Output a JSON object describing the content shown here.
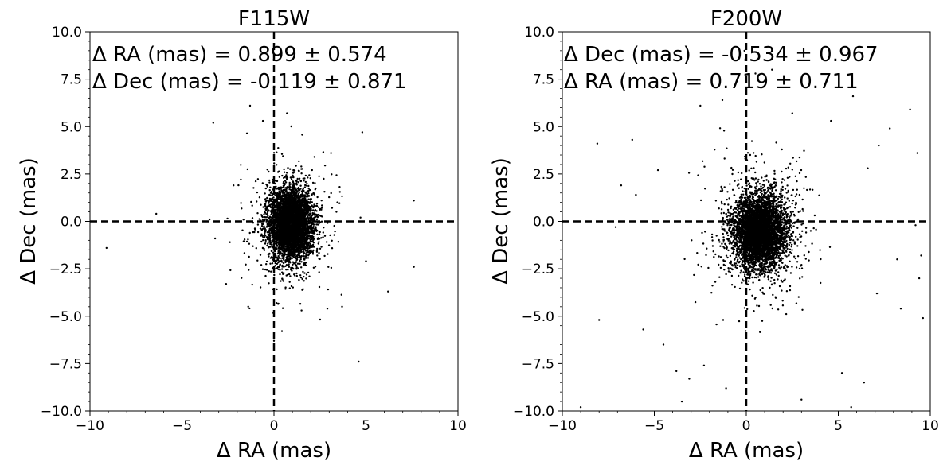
{
  "chart_data": [
    {
      "type": "scatter",
      "title": "F115W",
      "xlabel": "Δ RA (mas)",
      "ylabel": "Δ Dec (mas)",
      "xlim": [
        -10,
        10
      ],
      "ylim": [
        -10,
        10
      ],
      "xticks": [
        "−10",
        "−5",
        "0",
        "5",
        "10"
      ],
      "yticks": [
        "10.0",
        "7.5",
        "5.0",
        "2.5",
        "0.0",
        "−2.5",
        "−5.0",
        "−7.5",
        "−10.0"
      ],
      "annotations": [
        "Δ RA (mas) = 0.899 ± 0.574",
        "Δ Dec (mas) = -0.119 ± 0.871"
      ],
      "reference_lines": {
        "x": 0,
        "y": 0
      },
      "cluster": {
        "x_mean": 0.899,
        "x_std": 0.574,
        "y_mean": -0.119,
        "y_std": 0.871,
        "n": 5000
      },
      "outliers": [
        [
          -9.1,
          -1.4
        ],
        [
          -6.4,
          0.4
        ],
        [
          -3.3,
          5.2
        ],
        [
          -1.3,
          6.1
        ],
        [
          -0.6,
          5.3
        ],
        [
          4.8,
          4.7
        ],
        [
          7.6,
          1.1
        ],
        [
          7.6,
          -2.4
        ],
        [
          6.2,
          -3.7
        ],
        [
          4.6,
          -7.4
        ],
        [
          0.0,
          -6.3
        ],
        [
          -2.6,
          -3.3
        ],
        [
          -1.4,
          -4.5
        ],
        [
          -3.5,
          0.1
        ],
        [
          -2.2,
          1.9
        ],
        [
          -1.8,
          2.2
        ],
        [
          3.1,
          3.6
        ],
        [
          2.9,
          -4.6
        ],
        [
          3.7,
          -4.5
        ],
        [
          5.0,
          -2.1
        ],
        [
          4.7,
          0.2
        ],
        [
          -3.2,
          -0.9
        ],
        [
          -2.4,
          -1.1
        ],
        [
          2.2,
          3.4
        ],
        [
          1.5,
          -4.7
        ]
      ]
    },
    {
      "type": "scatter",
      "title": "F200W",
      "xlabel": "Δ RA (mas)",
      "ylabel": "Δ Dec (mas)",
      "xlim": [
        -10,
        10
      ],
      "ylim": [
        -10,
        10
      ],
      "xticks": [
        "−10",
        "−5",
        "0",
        "5",
        "10"
      ],
      "yticks": [
        "10.0",
        "7.5",
        "5.0",
        "2.5",
        "0.0",
        "−2.5",
        "−5.0",
        "−7.5",
        "−10.0"
      ],
      "annotations": [
        "Δ Dec (mas) = -0.534 ± 0.967",
        "Δ RA (mas) = 0.719 ± 0.711"
      ],
      "reference_lines": {
        "x": 0,
        "y": 0
      },
      "cluster": {
        "x_mean": 0.719,
        "x_std": 0.711,
        "y_mean": -0.534,
        "y_std": 0.967,
        "n": 5000
      },
      "outliers": [
        [
          -8.1,
          4.1
        ],
        [
          -9.0,
          -9.8
        ],
        [
          -8.0,
          -5.2
        ],
        [
          -6.2,
          4.3
        ],
        [
          -5.6,
          -5.7
        ],
        [
          -4.8,
          2.7
        ],
        [
          -4.5,
          -6.5
        ],
        [
          -3.8,
          -7.9
        ],
        [
          -3.5,
          -9.5
        ],
        [
          -3.1,
          -8.3
        ],
        [
          -2.5,
          6.1
        ],
        [
          -1.3,
          6.4
        ],
        [
          -1.1,
          -8.8
        ],
        [
          1.4,
          8.0
        ],
        [
          2.5,
          5.7
        ],
        [
          3.0,
          -9.4
        ],
        [
          3.5,
          -0.5
        ],
        [
          4.6,
          5.3
        ],
        [
          5.2,
          -8.0
        ],
        [
          5.7,
          -9.8
        ],
        [
          5.8,
          6.6
        ],
        [
          6.4,
          -8.5
        ],
        [
          7.2,
          4.0
        ],
        [
          7.8,
          4.9
        ],
        [
          8.4,
          -4.6
        ],
        [
          9.3,
          3.6
        ],
        [
          9.6,
          -5.1
        ],
        [
          9.5,
          -1.8
        ],
        [
          9.4,
          -3.0
        ],
        [
          8.9,
          5.9
        ],
        [
          9.2,
          -0.2
        ],
        [
          -6.8,
          1.9
        ],
        [
          -6.0,
          1.4
        ],
        [
          -7.1,
          -0.3
        ],
        [
          7.1,
          -3.8
        ],
        [
          8.2,
          -2.0
        ],
        [
          -2.3,
          -7.6
        ],
        [
          6.6,
          2.8
        ],
        [
          -0.1,
          9.0
        ],
        [
          0.5,
          7.8
        ]
      ]
    }
  ]
}
